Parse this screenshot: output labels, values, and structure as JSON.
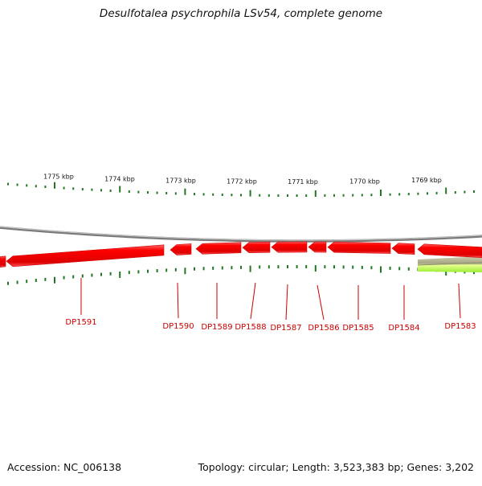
{
  "title": "Desulfotalea psychrophila LSv54, complete genome",
  "footer": {
    "accession": "Accession: NC_006138",
    "summary": "Topology: circular; Length: 3,523,383 bp; Genes: 3,202"
  },
  "colors": {
    "gene_forward": "#ff0000",
    "gene_highlight": "#ff7777",
    "tick": "#227722",
    "backbone": "#888888",
    "label": "#cc0000",
    "feature_green": "#aaff44",
    "feature_olive": "#a4a484"
  },
  "scale": {
    "unit": "kbp",
    "labels": [
      "1775 kbp",
      "1774 kbp",
      "1773 kbp",
      "1772 kbp",
      "1771 kbp",
      "1770 kbp",
      "1769 kbp"
    ]
  },
  "genes": [
    {
      "label": "DP1591"
    },
    {
      "label": "DP1590"
    },
    {
      "label": "DP1589"
    },
    {
      "label": "DP1588"
    },
    {
      "label": "DP1587"
    },
    {
      "label": "DP1586"
    },
    {
      "label": "DP1585"
    },
    {
      "label": "DP1584"
    },
    {
      "label": "DP1583"
    }
  ]
}
